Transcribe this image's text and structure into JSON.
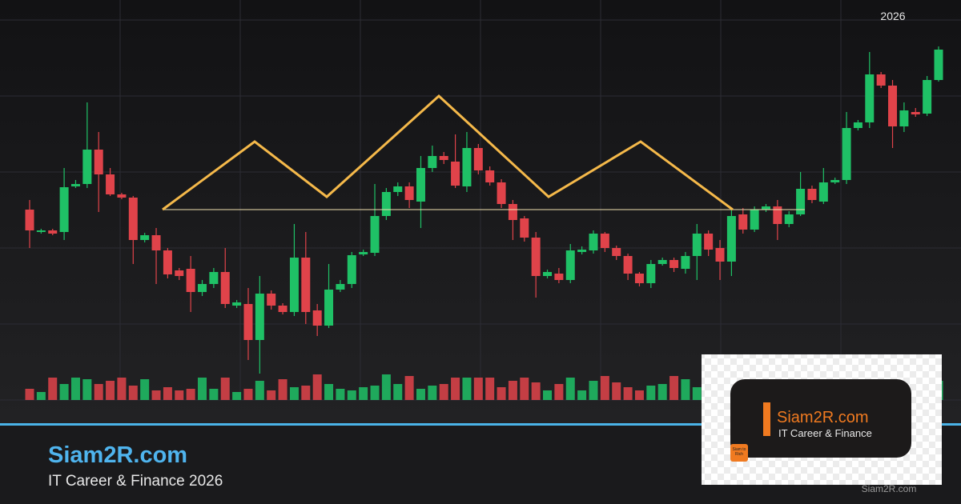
{
  "chart_data": {
    "type": "candlestick",
    "open": [
      238,
      210,
      212,
      210,
      267,
      270,
      313,
      282,
      257,
      253,
      200,
      206,
      187,
      162,
      164,
      135,
      145,
      160,
      118,
      120,
      75,
      133,
      118,
      110,
      178,
      112,
      93,
      138,
      145,
      182,
      184,
      230,
      260,
      267,
      248,
      290,
      305,
      298,
      267,
      315,
      287,
      272,
      245,
      227,
      203,
      155,
      158,
      150,
      185,
      187,
      208,
      190,
      180,
      158,
      146,
      170,
      175,
      164,
      180,
      208,
      190,
      173,
      232,
      213,
      238,
      242,
      220,
      232,
      264,
      248,
      272,
      275,
      340,
      347,
      407,
      393,
      342,
      360,
      358,
      400
    ],
    "high": [
      250,
      214,
      214,
      290,
      275,
      372,
      335,
      290,
      259,
      255,
      209,
      215,
      190,
      165,
      180,
      150,
      165,
      190,
      125,
      140,
      155,
      137,
      121,
      220,
      210,
      120,
      170,
      150,
      185,
      188,
      270,
      265,
      272,
      272,
      305,
      318,
      310,
      332,
      335,
      320,
      292,
      276,
      250,
      230,
      210,
      163,
      165,
      195,
      192,
      212,
      210,
      193,
      183,
      160,
      175,
      178,
      178,
      185,
      220,
      212,
      200,
      238,
      240,
      242,
      245,
      250,
      236,
      285,
      268,
      290,
      278,
      360,
      350,
      435,
      410,
      400,
      372,
      365,
      405,
      442
    ],
    "low": [
      190,
      208,
      206,
      200,
      265,
      265,
      235,
      255,
      251,
      170,
      197,
      145,
      152,
      150,
      110,
      130,
      140,
      115,
      115,
      50,
      33,
      113,
      107,
      105,
      95,
      80,
      90,
      135,
      140,
      180,
      180,
      225,
      255,
      240,
      215,
      285,
      295,
      265,
      260,
      282,
      268,
      240,
      200,
      198,
      128,
      152,
      146,
      146,
      182,
      183,
      185,
      175,
      150,
      142,
      140,
      168,
      160,
      158,
      150,
      180,
      150,
      155,
      208,
      210,
      235,
      200,
      216,
      230,
      246,
      245,
      270,
      270,
      337,
      340,
      390,
      315,
      335,
      354,
      355,
      398
    ],
    "close": [
      212,
      212,
      208,
      266,
      270,
      313,
      282,
      257,
      253,
      200,
      206,
      187,
      157,
      155,
      135,
      145,
      160,
      120,
      122,
      75,
      133,
      118,
      110,
      178,
      110,
      93,
      138,
      145,
      181,
      185,
      230,
      260,
      267,
      250,
      290,
      305,
      300,
      268,
      315,
      287,
      272,
      245,
      225,
      203,
      155,
      160,
      150,
      187,
      188,
      208,
      190,
      180,
      158,
      146,
      170,
      175,
      165,
      180,
      208,
      188,
      173,
      230,
      213,
      238,
      242,
      220,
      232,
      264,
      250,
      272,
      275,
      340,
      347,
      407,
      393,
      342,
      362,
      357,
      400,
      438
    ],
    "volume": [
      14,
      10,
      28,
      20,
      28,
      26,
      20,
      24,
      28,
      18,
      26,
      12,
      16,
      12,
      14,
      28,
      14,
      28,
      10,
      14,
      24,
      12,
      26,
      16,
      18,
      32,
      20,
      14,
      12,
      16,
      18,
      32,
      20,
      30,
      14,
      18,
      20,
      28,
      28,
      28,
      28,
      16,
      24,
      28,
      22,
      12,
      20,
      28,
      12,
      24,
      30,
      22,
      16,
      12,
      18,
      20,
      30,
      26,
      16,
      20,
      18,
      22,
      14,
      24,
      16,
      20,
      12,
      18,
      22,
      26,
      14,
      20,
      24,
      18,
      16,
      22,
      12,
      18,
      20,
      24
    ],
    "up_color": "#1fc166",
    "down_color": "#e0434a",
    "ylim": [
      0,
      500
    ],
    "y2lim": [
      0,
      500
    ]
  },
  "banner": {
    "year": "2026",
    "title": "Siam2R.com",
    "subtitle": "IT Career & Finance 2026"
  },
  "logo": {
    "name": "Siam2R.com",
    "tagline": "IT Career & Finance",
    "icon_text": "Siam to Rich",
    "watermark": "Siam2R.com"
  }
}
